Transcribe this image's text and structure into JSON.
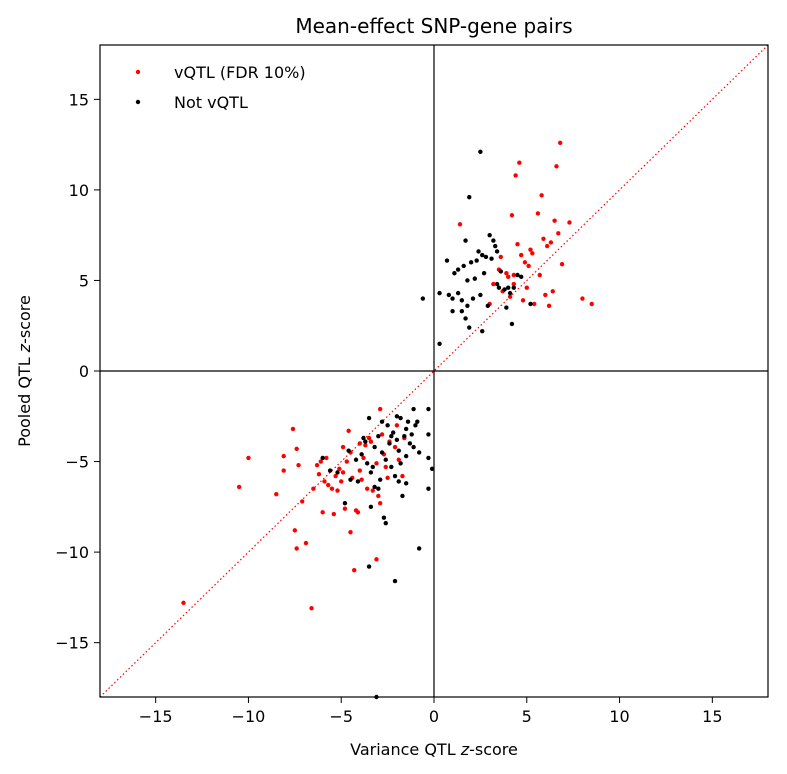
{
  "chart_data": {
    "type": "scatter",
    "title": "Mean-effect SNP-gene pairs",
    "xlabel_prefix": "Variance QTL ",
    "xlabel_italic": "z",
    "xlabel_suffix": "-score",
    "ylabel_prefix": "Pooled QTL ",
    "ylabel_italic": "z",
    "ylabel_suffix": "-score",
    "xlim": [
      -18,
      18
    ],
    "ylim": [
      -18,
      18
    ],
    "xticks": [
      -15,
      -10,
      -5,
      0,
      5,
      10,
      15
    ],
    "yticks": [
      -15,
      -10,
      -5,
      0,
      5,
      10,
      15
    ],
    "xtick_labels": [
      "−15",
      "−10",
      "−5",
      "0",
      "5",
      "10",
      "15"
    ],
    "ytick_labels": [
      "−15",
      "−10",
      "−5",
      "0",
      "5",
      "10",
      "15"
    ],
    "grid": false,
    "reference_lines": [
      "x=0",
      "y=0",
      "y=x dotted red"
    ],
    "legend_position": "top-left",
    "series": [
      {
        "name": "vQTL (FDR 10%)",
        "color": "#ff0000",
        "points": [
          [
            -13.5,
            -12.8
          ],
          [
            -10.5,
            -6.4
          ],
          [
            -10.0,
            -4.8
          ],
          [
            -8.5,
            -6.8
          ],
          [
            -8.1,
            -5.5
          ],
          [
            -8.1,
            -4.7
          ],
          [
            -7.6,
            -3.2
          ],
          [
            -7.5,
            -8.8
          ],
          [
            -7.4,
            -9.8
          ],
          [
            -7.4,
            -4.3
          ],
          [
            -7.3,
            -5.2
          ],
          [
            -7.1,
            -7.2
          ],
          [
            -6.9,
            -9.5
          ],
          [
            -6.6,
            -13.1
          ],
          [
            -6.5,
            -6.5
          ],
          [
            -6.3,
            -5.2
          ],
          [
            -6.2,
            -5.7
          ],
          [
            -6.1,
            -5.0
          ],
          [
            -6.0,
            -7.8
          ],
          [
            -5.9,
            -6.1
          ],
          [
            -5.8,
            -4.8
          ],
          [
            -5.7,
            -6.3
          ],
          [
            -5.5,
            -6.5
          ],
          [
            -5.4,
            -7.9
          ],
          [
            -5.3,
            -5.8
          ],
          [
            -5.2,
            -6.6
          ],
          [
            -5.1,
            -5.4
          ],
          [
            -5.0,
            -6.1
          ],
          [
            -4.9,
            -5.6
          ],
          [
            -4.9,
            -4.2
          ],
          [
            -4.8,
            -7.6
          ],
          [
            -4.7,
            -5.0
          ],
          [
            -4.6,
            -3.3
          ],
          [
            -4.5,
            -8.9
          ],
          [
            -4.5,
            -4.5
          ],
          [
            -4.4,
            -5.9
          ],
          [
            -4.3,
            -11.0
          ],
          [
            -4.2,
            -7.7
          ],
          [
            -4.1,
            -7.8
          ],
          [
            -4.0,
            -4.0
          ],
          [
            -4.0,
            -5.5
          ],
          [
            -3.9,
            -6.0
          ],
          [
            -3.8,
            -4.8
          ],
          [
            -3.7,
            -4.1
          ],
          [
            -3.6,
            -6.5
          ],
          [
            -3.5,
            -3.7
          ],
          [
            -3.4,
            -3.9
          ],
          [
            -3.3,
            -6.6
          ],
          [
            -3.1,
            -5.1
          ],
          [
            -3.0,
            -6.9
          ],
          [
            -2.9,
            -7.3
          ],
          [
            -2.9,
            -2.1
          ],
          [
            -2.8,
            -3.5
          ],
          [
            -2.7,
            -4.6
          ],
          [
            -2.6,
            -5.3
          ],
          [
            -2.4,
            -3.9
          ],
          [
            -2.1,
            -4.2
          ],
          [
            -1.9,
            -4.9
          ],
          [
            -1.7,
            -5.8
          ],
          [
            -1.6,
            -3.7
          ],
          [
            -3.1,
            -10.4
          ],
          [
            -2.0,
            -3.0
          ],
          [
            -2.5,
            -5.9
          ],
          [
            1.4,
            8.1
          ],
          [
            3.2,
            4.8
          ],
          [
            3.5,
            5.6
          ],
          [
            3.6,
            6.3
          ],
          [
            3.7,
            4.4
          ],
          [
            3.9,
            5.4
          ],
          [
            4.0,
            5.2
          ],
          [
            4.1,
            4.1
          ],
          [
            4.2,
            8.6
          ],
          [
            4.3,
            5.3
          ],
          [
            4.4,
            10.8
          ],
          [
            4.5,
            7.0
          ],
          [
            4.6,
            11.5
          ],
          [
            4.7,
            6.4
          ],
          [
            4.8,
            3.9
          ],
          [
            4.9,
            6.0
          ],
          [
            5.0,
            4.6
          ],
          [
            5.1,
            5.8
          ],
          [
            5.2,
            6.7
          ],
          [
            5.3,
            6.5
          ],
          [
            5.4,
            3.7
          ],
          [
            5.6,
            8.7
          ],
          [
            5.8,
            9.7
          ],
          [
            5.9,
            7.3
          ],
          [
            6.0,
            4.2
          ],
          [
            6.1,
            6.9
          ],
          [
            6.2,
            3.6
          ],
          [
            6.3,
            7.1
          ],
          [
            6.4,
            4.4
          ],
          [
            6.5,
            8.3
          ],
          [
            6.6,
            11.3
          ],
          [
            6.7,
            7.6
          ],
          [
            6.8,
            12.6
          ],
          [
            6.9,
            5.9
          ],
          [
            7.3,
            8.2
          ],
          [
            8.0,
            4.0
          ],
          [
            8.5,
            3.7
          ],
          [
            4.3,
            4.8
          ],
          [
            3.0,
            3.7
          ],
          [
            5.7,
            5.3
          ]
        ]
      },
      {
        "name": "Not vQTL",
        "color": "#000000",
        "points": [
          [
            -3.1,
            -18.0
          ],
          [
            -3.5,
            -10.8
          ],
          [
            -2.1,
            -11.6
          ],
          [
            -0.8,
            -9.8
          ],
          [
            -2.6,
            -8.4
          ],
          [
            -2.7,
            -8.1
          ],
          [
            -3.4,
            -7.5
          ],
          [
            -4.8,
            -7.3
          ],
          [
            -1.7,
            -6.9
          ],
          [
            -0.3,
            -6.5
          ],
          [
            -3.2,
            -6.4
          ],
          [
            -3.0,
            -6.5
          ],
          [
            -4.1,
            -6.1
          ],
          [
            -2.9,
            -6.0
          ],
          [
            -4.5,
            -6.0
          ],
          [
            -1.9,
            -6.1
          ],
          [
            -5.2,
            -5.6
          ],
          [
            -5.6,
            -5.5
          ],
          [
            -2.3,
            -5.3
          ],
          [
            -3.6,
            -5.1
          ],
          [
            -3.3,
            -5.3
          ],
          [
            -0.1,
            -5.4
          ],
          [
            -1.8,
            -5.1
          ],
          [
            -4.2,
            -4.9
          ],
          [
            -2.6,
            -4.9
          ],
          [
            -1.5,
            -4.7
          ],
          [
            -0.3,
            -4.8
          ],
          [
            -6.0,
            -4.8
          ],
          [
            -3.9,
            -4.6
          ],
          [
            -2.8,
            -4.5
          ],
          [
            -1.9,
            -4.4
          ],
          [
            -3.2,
            -4.2
          ],
          [
            -1.1,
            -4.2
          ],
          [
            -2.4,
            -4.0
          ],
          [
            -3.7,
            -3.9
          ],
          [
            -2.0,
            -3.8
          ],
          [
            -1.6,
            -3.6
          ],
          [
            -3.0,
            -3.6
          ],
          [
            -1.2,
            -3.5
          ],
          [
            -0.3,
            -3.5
          ],
          [
            -2.2,
            -3.4
          ],
          [
            -1.5,
            -3.2
          ],
          [
            -2.5,
            -3.0
          ],
          [
            -1.4,
            -2.8
          ],
          [
            -0.9,
            -2.8
          ],
          [
            -1.8,
            -2.6
          ],
          [
            -2.8,
            -2.8
          ],
          [
            -1.1,
            -2.1
          ],
          [
            -0.3,
            -2.1
          ],
          [
            -3.5,
            -2.6
          ],
          [
            -2.3,
            -3.6
          ],
          [
            -1.3,
            -4.0
          ],
          [
            -4.6,
            -4.4
          ],
          [
            -3.4,
            -5.6
          ],
          [
            -2.1,
            -5.8
          ],
          [
            -1.5,
            -6.2
          ],
          [
            -0.8,
            -4.5
          ],
          [
            -1.0,
            -3.0
          ],
          [
            -2.0,
            -2.5
          ],
          [
            -3.8,
            -3.7
          ],
          [
            0.3,
            1.5
          ],
          [
            0.3,
            4.3
          ],
          [
            0.7,
            6.1
          ],
          [
            0.8,
            4.2
          ],
          [
            1.0,
            3.3
          ],
          [
            1.0,
            4.0
          ],
          [
            1.1,
            5.4
          ],
          [
            1.3,
            4.3
          ],
          [
            1.5,
            3.9
          ],
          [
            1.5,
            3.3
          ],
          [
            1.6,
            5.8
          ],
          [
            1.7,
            2.9
          ],
          [
            1.7,
            7.2
          ],
          [
            1.8,
            3.6
          ],
          [
            1.8,
            5.0
          ],
          [
            1.9,
            9.6
          ],
          [
            1.9,
            2.4
          ],
          [
            2.0,
            6.0
          ],
          [
            2.1,
            4.0
          ],
          [
            2.2,
            5.1
          ],
          [
            2.3,
            6.1
          ],
          [
            2.4,
            6.6
          ],
          [
            2.5,
            12.1
          ],
          [
            2.5,
            4.2
          ],
          [
            2.6,
            2.2
          ],
          [
            2.7,
            5.4
          ],
          [
            2.8,
            6.3
          ],
          [
            2.9,
            3.6
          ],
          [
            3.0,
            7.5
          ],
          [
            3.1,
            6.2
          ],
          [
            3.2,
            7.2
          ],
          [
            3.3,
            6.9
          ],
          [
            3.4,
            4.8
          ],
          [
            3.5,
            4.6
          ],
          [
            3.6,
            5.5
          ],
          [
            3.8,
            4.5
          ],
          [
            3.9,
            3.5
          ],
          [
            4.0,
            4.6
          ],
          [
            4.1,
            4.3
          ],
          [
            4.2,
            2.6
          ],
          [
            4.3,
            4.6
          ],
          [
            4.5,
            5.3
          ],
          [
            4.7,
            5.2
          ],
          [
            5.2,
            3.7
          ],
          [
            3.4,
            6.6
          ],
          [
            2.6,
            6.4
          ],
          [
            1.3,
            5.6
          ],
          [
            -0.6,
            4.0
          ]
        ]
      }
    ]
  }
}
